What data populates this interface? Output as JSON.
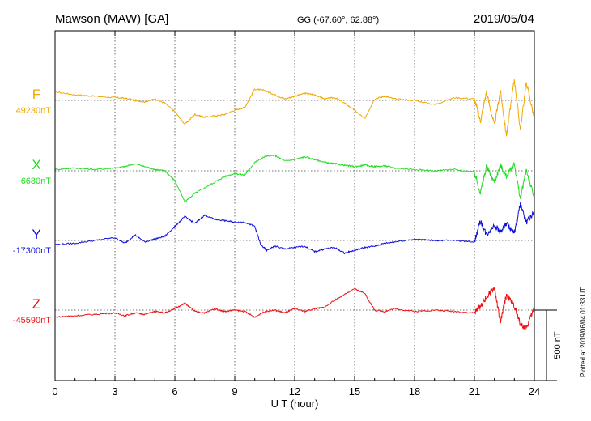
{
  "header": {
    "station": "Mawson (MAW)  [GA]",
    "coords": "GG (-67.60°,  62.88°)",
    "date": "2019/05/04"
  },
  "plotted_note": "Plotted at 2019/06/04 01:33 UT",
  "chart_data": {
    "type": "line",
    "title": "Mawson (MAW)  [GA]",
    "xlabel": "U T (hour)",
    "ylabel": "",
    "xlim": [
      0,
      24
    ],
    "x_ticks": [
      0,
      3,
      6,
      9,
      12,
      15,
      18,
      21,
      24
    ],
    "x_tick_labels": [
      "0",
      "3",
      "6",
      "9",
      "12",
      "15",
      "18",
      "21",
      "24"
    ],
    "grid": true,
    "scale_bar": {
      "value": 500,
      "label": "500 nT"
    },
    "series": [
      {
        "name": "F",
        "baseline_label": "49230nT",
        "baseline": 49230,
        "color": "#f0a800",
        "x": [
          0,
          1,
          2,
          3,
          3.5,
          4,
          4.5,
          5,
          5.5,
          6,
          6.5,
          7,
          7.5,
          8,
          8.5,
          9,
          9.5,
          10,
          10.5,
          11,
          11.5,
          12,
          12.5,
          13,
          13.5,
          14,
          14.5,
          15,
          15.5,
          16,
          16.5,
          17,
          18,
          19,
          20,
          21,
          21.3,
          21.6,
          22,
          22.3,
          22.6,
          23,
          23.3,
          23.6,
          24
        ],
        "y": [
          49290,
          49270,
          49260,
          49250,
          49245,
          49230,
          49220,
          49240,
          49210,
          49150,
          49060,
          49130,
          49110,
          49120,
          49130,
          49160,
          49180,
          49310,
          49300,
          49270,
          49240,
          49260,
          49280,
          49270,
          49240,
          49250,
          49210,
          49160,
          49100,
          49240,
          49260,
          49240,
          49230,
          49200,
          49250,
          49240,
          49080,
          49290,
          49050,
          49300,
          48980,
          49380,
          49020,
          49360,
          49100
        ]
      },
      {
        "name": "X",
        "baseline_label": "6680nT",
        "baseline": 6680,
        "color": "#22dd22",
        "x": [
          0,
          1,
          2,
          3,
          3.5,
          4,
          4.5,
          5,
          5.5,
          6,
          6.5,
          7,
          7.5,
          8,
          8.5,
          9,
          9.5,
          10,
          10.5,
          11,
          11.5,
          12,
          12.5,
          13,
          13.5,
          14,
          14.5,
          15,
          15.5,
          16,
          16.5,
          17,
          18,
          19,
          20,
          21,
          21.3,
          21.6,
          22,
          22.3,
          22.6,
          23,
          23.3,
          23.6,
          24
        ],
        "y": [
          6690,
          6700,
          6690,
          6700,
          6710,
          6730,
          6710,
          6690,
          6680,
          6610,
          6460,
          6520,
          6560,
          6600,
          6640,
          6660,
          6650,
          6740,
          6780,
          6790,
          6750,
          6760,
          6780,
          6760,
          6740,
          6730,
          6720,
          6710,
          6720,
          6710,
          6715,
          6700,
          6690,
          6680,
          6690,
          6670,
          6520,
          6710,
          6600,
          6720,
          6640,
          6730,
          6480,
          6690,
          6480
        ]
      },
      {
        "name": "Y",
        "baseline_label": "-17300nT",
        "baseline": -17300,
        "color": "#1010dd",
        "x": [
          0,
          1,
          2,
          3,
          3.5,
          4,
          4.5,
          5,
          5.5,
          6,
          6.5,
          7,
          7.5,
          8,
          8.5,
          9,
          9.5,
          10,
          10.3,
          10.6,
          11,
          11.5,
          12,
          12.5,
          13,
          13.5,
          14,
          14.5,
          15,
          15.5,
          16,
          16.5,
          17,
          18,
          19,
          20,
          21,
          21.3,
          21.6,
          22,
          22.3,
          22.6,
          23,
          23.3,
          23.6,
          24
        ],
        "y": [
          -17330,
          -17320,
          -17300,
          -17280,
          -17320,
          -17260,
          -17310,
          -17290,
          -17270,
          -17200,
          -17130,
          -17180,
          -17120,
          -17150,
          -17160,
          -17170,
          -17170,
          -17200,
          -17330,
          -17370,
          -17340,
          -17360,
          -17350,
          -17340,
          -17380,
          -17360,
          -17350,
          -17390,
          -17370,
          -17350,
          -17340,
          -17320,
          -17310,
          -17290,
          -17300,
          -17300,
          -17310,
          -17160,
          -17260,
          -17190,
          -17240,
          -17180,
          -17250,
          -17040,
          -17170,
          -17100
        ]
      },
      {
        "name": "Z",
        "baseline_label": "-45590nT",
        "baseline": -45590,
        "color": "#ee1111",
        "x": [
          0,
          1,
          2,
          3,
          3.5,
          4,
          4.5,
          5,
          5.5,
          6,
          6.5,
          7,
          7.5,
          8,
          8.5,
          9,
          9.5,
          10,
          10.5,
          11,
          11.5,
          12,
          12.5,
          13,
          13.5,
          14,
          14.5,
          15,
          15.5,
          16,
          16.5,
          17,
          18,
          19,
          20,
          21,
          21.3,
          21.6,
          22,
          22.3,
          22.6,
          23,
          23.3,
          23.6,
          24
        ],
        "y": [
          -45640,
          -45630,
          -45620,
          -45610,
          -45630,
          -45610,
          -45620,
          -45600,
          -45610,
          -45580,
          -45540,
          -45600,
          -45610,
          -45580,
          -45600,
          -45590,
          -45600,
          -45640,
          -45600,
          -45590,
          -45610,
          -45580,
          -45600,
          -45580,
          -45570,
          -45520,
          -45480,
          -45440,
          -45470,
          -45590,
          -45600,
          -45580,
          -45600,
          -45590,
          -45600,
          -45610,
          -45560,
          -45500,
          -45430,
          -45680,
          -45480,
          -45560,
          -45690,
          -45720,
          -45570
        ]
      }
    ]
  }
}
